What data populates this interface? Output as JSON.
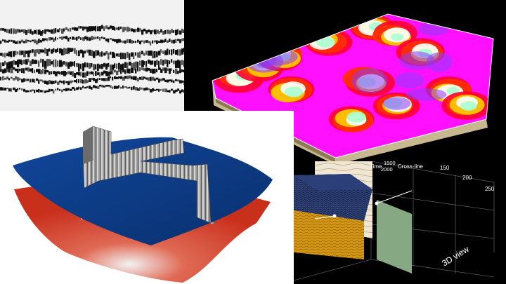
{
  "panels": {
    "seismic_section": {
      "kind": "seismic-wiggle-traces"
    },
    "surface_map": {
      "kind": "3d-attribute-surface",
      "colormap": [
        "#ff00ff",
        "#ff0000",
        "#ffcc00",
        "#ffffff",
        "#8040ff"
      ]
    },
    "horizons_slices": {
      "kind": "horizons-with-crossing-slices",
      "colors": {
        "upper_horizon": "#0d3d8a",
        "lower_horizon": "#d83a2a",
        "slices": "#9a9a9a"
      }
    },
    "volume_3d": {
      "kind": "3d-volume-view",
      "axis_title_time": "Time",
      "axis_title_crossline": "Cross-line",
      "caption": "3D view",
      "ticks_time": [
        "1500",
        "2000"
      ],
      "ticks_crossline": [
        "150",
        "200",
        "250"
      ]
    }
  }
}
